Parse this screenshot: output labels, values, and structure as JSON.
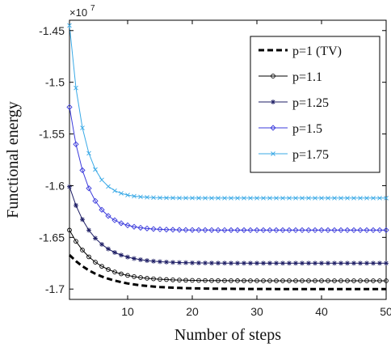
{
  "chart_data": {
    "type": "line",
    "title": "",
    "xlabel": "Number of steps",
    "ylabel": "Functional energy",
    "y_exponent_label": "×10",
    "y_exponent_power": "7",
    "xlim": [
      1,
      50
    ],
    "ylim": [
      -1.71,
      -1.44
    ],
    "x_ticks": [
      10,
      20,
      30,
      40,
      50
    ],
    "x_tick_labels": [
      "10",
      "20",
      "30",
      "40",
      "50"
    ],
    "y_ticks": [
      -1.45,
      -1.5,
      -1.55,
      -1.6,
      -1.65,
      -1.7
    ],
    "y_tick_labels": [
      "-1.45",
      "-1.5",
      "-1.55",
      "-1.6",
      "-1.65",
      "-1.7"
    ],
    "grid": false,
    "legend_position": "top-right",
    "series": [
      {
        "name": "p=1 (TV)",
        "color": "#000000",
        "style": "dashed",
        "marker": "none",
        "start": -1.667,
        "end": -1.7,
        "rate": 0.2
      },
      {
        "name": "p=1.1",
        "color": "#000000",
        "style": "solid",
        "marker": "circle",
        "start": -1.643,
        "end": -1.692,
        "rate": 0.25
      },
      {
        "name": "p=1.25",
        "color": "#1c1c64",
        "style": "solid",
        "marker": "star",
        "start": -1.601,
        "end": -1.675,
        "rate": 0.28
      },
      {
        "name": "p=1.5",
        "color": "#3b3bdc",
        "style": "solid",
        "marker": "diamond",
        "start": -1.524,
        "end": -1.643,
        "rate": 0.36
      },
      {
        "name": "p=1.75",
        "color": "#39a9e6",
        "style": "solid",
        "marker": "x",
        "start": -1.445,
        "end": -1.612,
        "rate": 0.45
      }
    ]
  }
}
